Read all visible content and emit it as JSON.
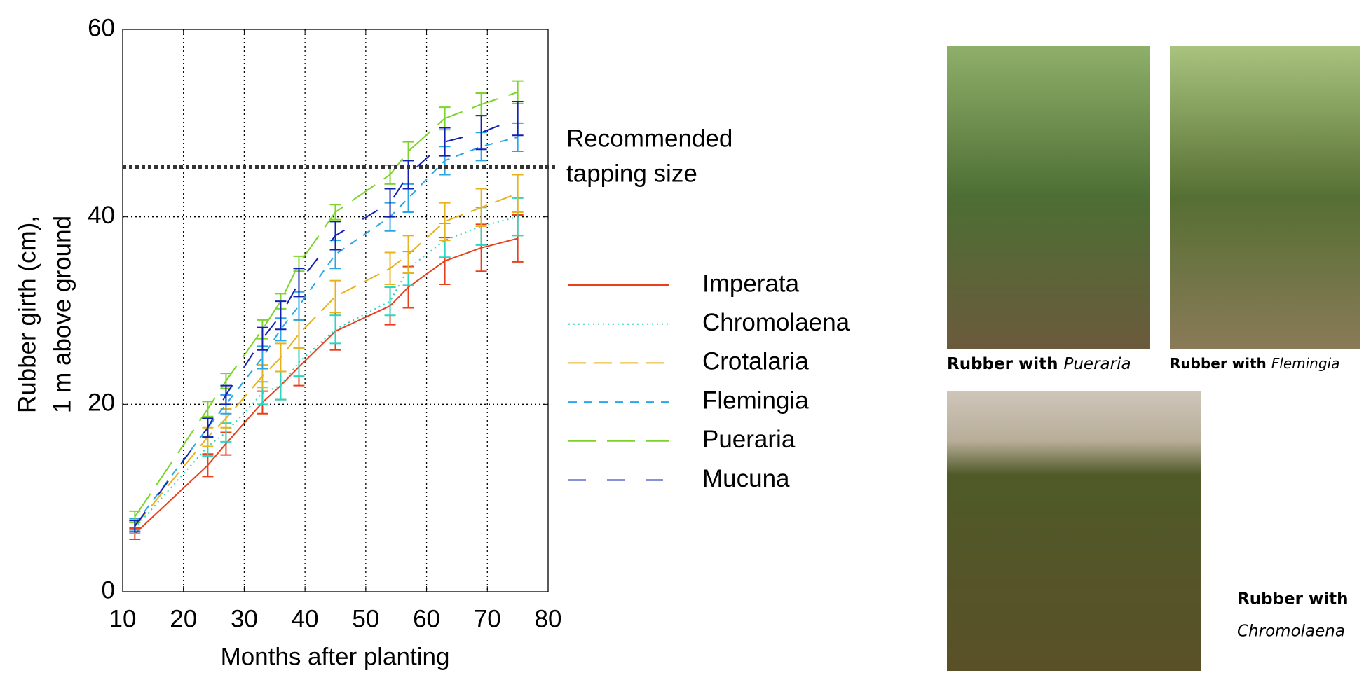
{
  "chart_data": {
    "type": "line",
    "x": [
      12,
      24,
      27,
      33,
      36,
      39,
      45,
      54,
      57,
      63,
      69,
      75
    ],
    "series": [
      {
        "name": "Imperata",
        "color": "#e8401c",
        "dash": "none",
        "values": [
          6.2,
          13.5,
          15.8,
          20.2,
          22,
          24,
          27.8,
          30.5,
          32.5,
          35.3,
          36.7,
          37.7
        ],
        "errors": [
          0.6,
          1.2,
          1.2,
          1.2,
          1.5,
          2,
          2,
          2,
          2.2,
          2.5,
          2.5,
          2.5
        ]
      },
      {
        "name": "Chromolaena",
        "color": "#2ad6c0",
        "dash": "2,5",
        "values": [
          6.8,
          15.5,
          17,
          21.2,
          22,
          24.5,
          28,
          31,
          34.5,
          37.5,
          39,
          40
        ],
        "errors": [
          0.6,
          1,
          1,
          1.2,
          1.5,
          1.5,
          1.5,
          1.5,
          1.8,
          1.8,
          2,
          2
        ]
      },
      {
        "name": "Crotalaria",
        "color": "#e8b21c",
        "dash": "25,12",
        "values": [
          7,
          16.5,
          18.5,
          23,
          25,
          27.5,
          31.5,
          34.5,
          36,
          39.5,
          41,
          42.5
        ],
        "errors": [
          0.6,
          1,
          1,
          1.2,
          1.5,
          1.5,
          1.7,
          1.7,
          2,
          2,
          2,
          2
        ]
      },
      {
        "name": "Flemingia",
        "color": "#2aa6e6",
        "dash": "12,10",
        "values": [
          7.2,
          17.5,
          20,
          25,
          28,
          30.5,
          36,
          40,
          42,
          46,
          47.5,
          48.5
        ],
        "errors": [
          0.6,
          1,
          1,
          1.2,
          1.2,
          1.5,
          1.5,
          1.5,
          1.5,
          1.5,
          1.5,
          1.5
        ]
      },
      {
        "name": "Pueraria",
        "color": "#7cd42a",
        "dash": "40,15",
        "values": [
          8,
          19.5,
          22.5,
          28,
          31,
          35,
          40.5,
          44.5,
          47,
          50.5,
          52,
          53.3
        ],
        "errors": [
          0.6,
          0.8,
          0.8,
          1,
          0.8,
          0.8,
          0.8,
          1,
          1,
          1.2,
          1.2,
          1.2
        ]
      },
      {
        "name": "Mucuna",
        "color": "#1020b0",
        "dash": "25,30",
        "values": [
          7,
          17.5,
          21,
          27,
          29.5,
          33,
          38,
          41.5,
          44.5,
          48,
          49,
          50.5
        ],
        "errors": [
          0.6,
          1,
          1,
          1.2,
          1.5,
          1.5,
          1.5,
          1.5,
          1.5,
          1.5,
          1.8,
          1.8
        ]
      }
    ],
    "xlim": [
      10,
      80
    ],
    "xticks": [
      10,
      20,
      30,
      40,
      50,
      60,
      70,
      80
    ],
    "ylim": [
      0,
      60
    ],
    "yticks": [
      0,
      20,
      40,
      60
    ],
    "grid": true,
    "xlabel": "Months after planting",
    "ylabel": [
      "Rubber girth (cm),",
      "1 m above ground"
    ],
    "reference_line": {
      "value": 45.3,
      "label": [
        "Recommended",
        "tapping size"
      ]
    }
  },
  "photos": [
    {
      "caption": "Rubber with",
      "species": "Pueraria"
    },
    {
      "caption": "Rubber with",
      "species": "Flemingia"
    },
    {
      "caption": "Rubber with",
      "species": "Chromolaena"
    }
  ]
}
